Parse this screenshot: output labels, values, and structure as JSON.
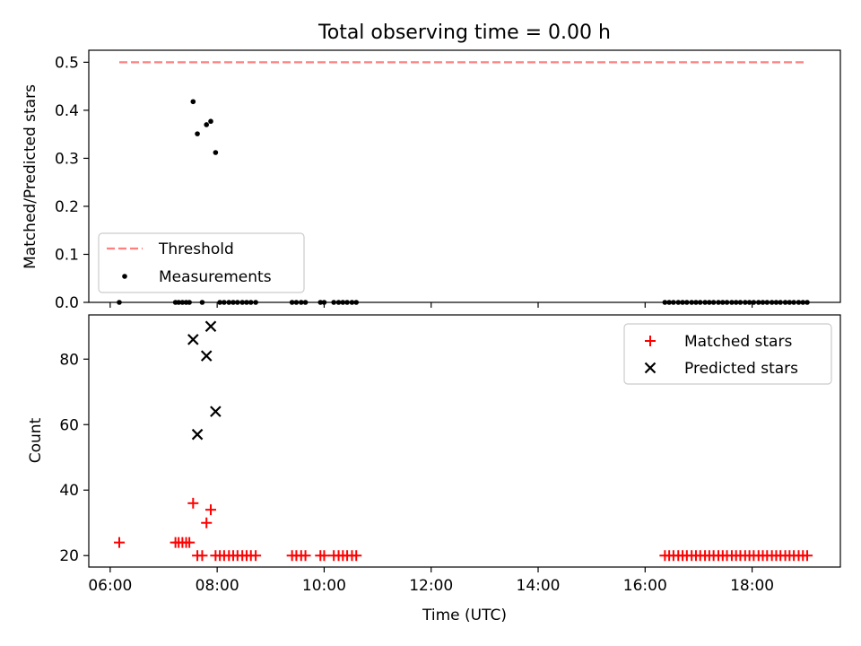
{
  "chart_data": [
    {
      "type": "scatter",
      "panel": "top",
      "title": "Total observing time = 0.00 h",
      "xlabel": "",
      "ylabel": "Matched/Predicted stars",
      "xlim": [
        5.6,
        19.65
      ],
      "ylim": [
        0.0,
        0.525
      ],
      "x_ticks": [
        6,
        8,
        10,
        12,
        14,
        16,
        18
      ],
      "y_ticks": [
        0.0,
        0.1,
        0.2,
        0.3,
        0.4,
        0.5
      ],
      "y_tick_labels": [
        "0.0",
        "0.1",
        "0.2",
        "0.3",
        "0.4",
        "0.5"
      ],
      "grid": false,
      "legend_placement": "lower-left",
      "series": [
        {
          "name": "Threshold",
          "kind": "line",
          "style": "dashed",
          "color": "#ff7f7f",
          "points": [
            [
              6.17,
              0.5
            ],
            [
              19.02,
              0.5
            ]
          ]
        },
        {
          "name": "Measurements",
          "kind": "scatter",
          "marker": "dot",
          "color": "#000000",
          "points": [
            [
              6.17,
              0.0
            ],
            [
              7.22,
              0.0
            ],
            [
              7.28,
              0.0
            ],
            [
              7.35,
              0.0
            ],
            [
              7.42,
              0.0
            ],
            [
              7.48,
              0.0
            ],
            [
              7.55,
              0.418
            ],
            [
              7.63,
              0.351
            ],
            [
              7.72,
              0.0
            ],
            [
              7.8,
              0.37
            ],
            [
              7.88,
              0.377
            ],
            [
              7.97,
              0.312
            ],
            [
              8.05,
              0.0
            ],
            [
              8.13,
              0.0
            ],
            [
              8.22,
              0.0
            ],
            [
              8.3,
              0.0
            ],
            [
              8.38,
              0.0
            ],
            [
              8.47,
              0.0
            ],
            [
              8.55,
              0.0
            ],
            [
              8.63,
              0.0
            ],
            [
              8.72,
              0.0
            ],
            [
              9.4,
              0.0
            ],
            [
              9.48,
              0.0
            ],
            [
              9.57,
              0.0
            ],
            [
              9.65,
              0.0
            ],
            [
              9.93,
              0.0
            ],
            [
              10.0,
              0.0
            ],
            [
              10.18,
              0.0
            ],
            [
              10.27,
              0.0
            ],
            [
              10.35,
              0.0
            ],
            [
              10.43,
              0.0
            ],
            [
              10.52,
              0.0
            ],
            [
              10.6,
              0.0
            ],
            [
              16.37,
              0.0
            ],
            [
              16.45,
              0.0
            ],
            [
              16.53,
              0.0
            ],
            [
              16.62,
              0.0
            ],
            [
              16.7,
              0.0
            ],
            [
              16.78,
              0.0
            ],
            [
              16.87,
              0.0
            ],
            [
              16.95,
              0.0
            ],
            [
              17.03,
              0.0
            ],
            [
              17.12,
              0.0
            ],
            [
              17.2,
              0.0
            ],
            [
              17.28,
              0.0
            ],
            [
              17.37,
              0.0
            ],
            [
              17.45,
              0.0
            ],
            [
              17.53,
              0.0
            ],
            [
              17.62,
              0.0
            ],
            [
              17.7,
              0.0
            ],
            [
              17.78,
              0.0
            ],
            [
              17.87,
              0.0
            ],
            [
              17.95,
              0.0
            ],
            [
              18.03,
              0.0
            ],
            [
              18.12,
              0.0
            ],
            [
              18.2,
              0.0
            ],
            [
              18.28,
              0.0
            ],
            [
              18.37,
              0.0
            ],
            [
              18.45,
              0.0
            ],
            [
              18.53,
              0.0
            ],
            [
              18.62,
              0.0
            ],
            [
              18.7,
              0.0
            ],
            [
              18.78,
              0.0
            ],
            [
              18.87,
              0.0
            ],
            [
              18.95,
              0.0
            ],
            [
              19.03,
              0.0
            ]
          ]
        }
      ]
    },
    {
      "type": "scatter",
      "panel": "bottom",
      "title": "",
      "xlabel": "Time (UTC)",
      "ylabel": "Count",
      "xlim": [
        5.6,
        19.65
      ],
      "ylim": [
        16.5,
        93.5
      ],
      "x_ticks": [
        6,
        8,
        10,
        12,
        14,
        16,
        18
      ],
      "x_tick_labels": [
        "06:00",
        "08:00",
        "10:00",
        "12:00",
        "14:00",
        "16:00",
        "18:00"
      ],
      "y_ticks": [
        20,
        40,
        60,
        80
      ],
      "y_tick_labels": [
        "20",
        "40",
        "60",
        "80"
      ],
      "grid": false,
      "legend_placement": "upper-right",
      "series": [
        {
          "name": "Matched stars",
          "kind": "scatter",
          "marker": "plus",
          "color": "#ff0000",
          "points": [
            [
              6.17,
              24
            ],
            [
              7.22,
              24
            ],
            [
              7.28,
              24
            ],
            [
              7.35,
              24
            ],
            [
              7.42,
              24
            ],
            [
              7.48,
              24
            ],
            [
              7.55,
              36
            ],
            [
              7.63,
              20
            ],
            [
              7.72,
              20
            ],
            [
              7.8,
              30
            ],
            [
              7.88,
              34
            ],
            [
              7.97,
              20
            ],
            [
              8.05,
              20
            ],
            [
              8.13,
              20
            ],
            [
              8.22,
              20
            ],
            [
              8.3,
              20
            ],
            [
              8.38,
              20
            ],
            [
              8.47,
              20
            ],
            [
              8.55,
              20
            ],
            [
              8.63,
              20
            ],
            [
              8.72,
              20
            ],
            [
              9.4,
              20
            ],
            [
              9.48,
              20
            ],
            [
              9.57,
              20
            ],
            [
              9.65,
              20
            ],
            [
              9.93,
              20
            ],
            [
              10.0,
              20
            ],
            [
              10.18,
              20
            ],
            [
              10.27,
              20
            ],
            [
              10.35,
              20
            ],
            [
              10.43,
              20
            ],
            [
              10.52,
              20
            ],
            [
              10.6,
              20
            ],
            [
              16.37,
              20
            ],
            [
              16.45,
              20
            ],
            [
              16.53,
              20
            ],
            [
              16.62,
              20
            ],
            [
              16.7,
              20
            ],
            [
              16.78,
              20
            ],
            [
              16.87,
              20
            ],
            [
              16.95,
              20
            ],
            [
              17.03,
              20
            ],
            [
              17.12,
              20
            ],
            [
              17.2,
              20
            ],
            [
              17.28,
              20
            ],
            [
              17.37,
              20
            ],
            [
              17.45,
              20
            ],
            [
              17.53,
              20
            ],
            [
              17.62,
              20
            ],
            [
              17.7,
              20
            ],
            [
              17.78,
              20
            ],
            [
              17.87,
              20
            ],
            [
              17.95,
              20
            ],
            [
              18.03,
              20
            ],
            [
              18.12,
              20
            ],
            [
              18.2,
              20
            ],
            [
              18.28,
              20
            ],
            [
              18.37,
              20
            ],
            [
              18.45,
              20
            ],
            [
              18.53,
              20
            ],
            [
              18.62,
              20
            ],
            [
              18.7,
              20
            ],
            [
              18.78,
              20
            ],
            [
              18.87,
              20
            ],
            [
              18.95,
              20
            ],
            [
              19.03,
              20
            ]
          ]
        },
        {
          "name": "Predicted stars",
          "kind": "scatter",
          "marker": "x",
          "color": "#000000",
          "points": [
            [
              7.55,
              86
            ],
            [
              7.63,
              57
            ],
            [
              7.8,
              81
            ],
            [
              7.88,
              90
            ],
            [
              7.97,
              64
            ]
          ]
        }
      ]
    }
  ]
}
